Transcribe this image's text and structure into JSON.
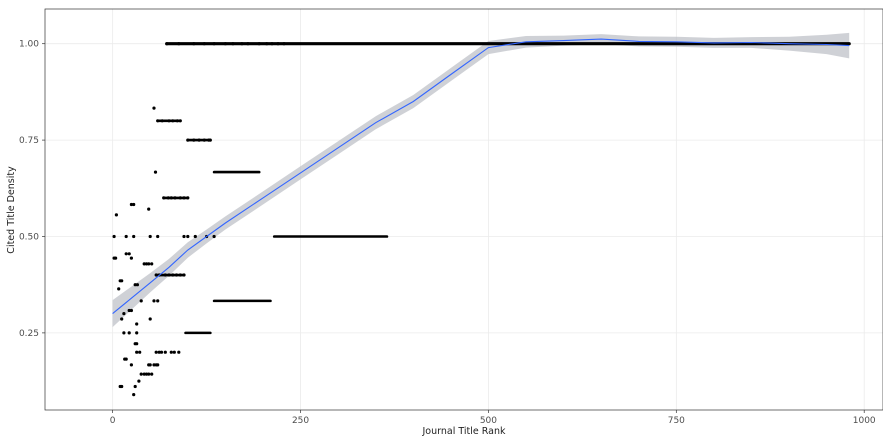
{
  "chart_data": {
    "type": "scatter",
    "title": "",
    "xlabel": "Journal Title Rank",
    "ylabel": "Cited Title Density",
    "xlim": [
      -90,
      1025
    ],
    "ylim": [
      0.05,
      1.09
    ],
    "x_ticks": [
      0,
      250,
      500,
      750,
      1000
    ],
    "y_ticks": [
      0.25,
      0.5,
      0.75,
      1.0
    ],
    "x_tick_labels": [
      "0",
      "250",
      "500",
      "750",
      "1000"
    ],
    "y_tick_labels": [
      "0.25",
      "0.50",
      "0.75",
      "1.00"
    ],
    "grid": true,
    "legend": "none",
    "colors": {
      "points": "#000000",
      "smooth_line": "#3366ff",
      "confidence_band": "#bbbec4",
      "grid": "#ebebeb",
      "panel_border": "#333333"
    },
    "point_groups": [
      {
        "y": 1.0,
        "x_from": 72,
        "x_to": 980,
        "sparse_points": [
          72,
          88,
          108,
          122,
          135,
          150,
          160,
          172,
          180,
          195,
          205,
          212,
          220,
          228
        ]
      },
      {
        "y": 0.833,
        "points": [
          55
        ]
      },
      {
        "y": 0.8,
        "x_from": 60,
        "x_to": 90,
        "sparse_points": [
          60,
          66,
          75,
          80,
          86,
          90
        ]
      },
      {
        "y": 0.75,
        "x_from": 100,
        "x_to": 130,
        "sparse_points": [
          100,
          108,
          115,
          122,
          128,
          130
        ]
      },
      {
        "y": 0.667,
        "x_from": 135,
        "x_to": 195,
        "sparse_points": [
          57
        ]
      },
      {
        "y": 0.6,
        "x_from": 68,
        "x_to": 100,
        "sparse_points": [
          68,
          74,
          78,
          83,
          90,
          95,
          100
        ]
      },
      {
        "y": 0.5,
        "x_from": 215,
        "x_to": 365,
        "sparse_points": [
          2,
          18,
          28,
          50,
          60,
          95,
          100,
          110,
          125,
          135
        ]
      },
      {
        "y": 0.4,
        "x_from": 58,
        "x_to": 95,
        "sparse_points": [
          58,
          62,
          70,
          75,
          80,
          85,
          90,
          95
        ]
      },
      {
        "y": 0.333,
        "x_from": 135,
        "x_to": 210,
        "sparse_points": [
          38,
          55,
          60
        ]
      },
      {
        "y": 0.25,
        "x_from": 97,
        "x_to": 130,
        "sparse_points": [
          15,
          22,
          32
        ]
      },
      {
        "y": 0.2,
        "points": [
          32,
          36,
          58,
          62,
          65,
          70,
          78,
          82,
          88
        ]
      },
      {
        "y": 0.167,
        "points": [
          25,
          48,
          50,
          55,
          58,
          60
        ]
      },
      {
        "y": 0.143,
        "points": [
          38,
          42,
          45,
          48,
          52
        ]
      },
      {
        "y": 0.125,
        "points": [
          35
        ]
      },
      {
        "y": 0.111,
        "points": [
          10,
          12,
          30
        ]
      },
      {
        "y": 0.09,
        "points": [
          28
        ]
      },
      {
        "y": 0.429,
        "points": [
          42,
          45,
          48,
          52
        ]
      },
      {
        "y": 0.571,
        "points": [
          48
        ]
      },
      {
        "y": 0.556,
        "points": [
          5
        ]
      },
      {
        "y": 0.455,
        "points": [
          18,
          22
        ]
      },
      {
        "y": 0.444,
        "points": [
          2,
          4,
          25
        ]
      },
      {
        "y": 0.385,
        "points": [
          10,
          12
        ]
      },
      {
        "y": 0.375,
        "points": [
          30,
          33
        ]
      },
      {
        "y": 0.364,
        "points": [
          8
        ]
      },
      {
        "y": 0.308,
        "points": [
          22,
          25
        ]
      },
      {
        "y": 0.3,
        "points": [
          15
        ]
      },
      {
        "y": 0.286,
        "points": [
          12,
          50
        ]
      },
      {
        "y": 0.273,
        "points": [
          32
        ]
      },
      {
        "y": 0.222,
        "points": [
          30,
          32
        ]
      },
      {
        "y": 0.182,
        "points": [
          16,
          18
        ]
      },
      {
        "y": 0.583,
        "points": [
          25,
          28
        ]
      }
    ],
    "smooth_fit": {
      "x": [
        0,
        25,
        50,
        75,
        100,
        125,
        150,
        200,
        250,
        300,
        350,
        400,
        450,
        500,
        550,
        600,
        650,
        700,
        750,
        800,
        850,
        900,
        950,
        980
      ],
      "y": [
        0.3,
        0.34,
        0.38,
        0.42,
        0.465,
        0.5,
        0.535,
        0.6,
        0.665,
        0.73,
        0.795,
        0.85,
        0.92,
        0.99,
        1.005,
        1.008,
        1.012,
        1.006,
        1.005,
        1.002,
        1.003,
        1.0,
        0.998,
        0.995
      ],
      "band_halfwidth": [
        0.035,
        0.03,
        0.025,
        0.022,
        0.02,
        0.018,
        0.017,
        0.017,
        0.017,
        0.017,
        0.017,
        0.017,
        0.017,
        0.017,
        0.015,
        0.013,
        0.013,
        0.013,
        0.013,
        0.013,
        0.014,
        0.018,
        0.025,
        0.033
      ]
    }
  }
}
